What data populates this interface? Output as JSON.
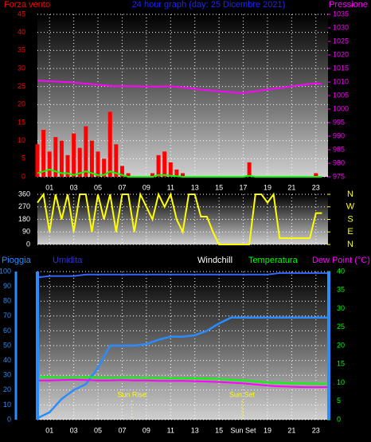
{
  "chart_data": [
    {
      "type": "bar",
      "title": "24 hour graph (day: 25 Dicembre 2021)",
      "title_color": "#2222ff",
      "y_label": "Forza vento",
      "y2_label": "Pressione",
      "x": [
        0,
        0.5,
        1,
        1.5,
        2,
        2.5,
        3,
        3.5,
        4,
        4.5,
        5,
        5.5,
        6,
        6.5,
        7,
        7.5,
        8,
        8.5,
        9,
        9.5,
        10,
        10.5,
        11,
        11.5,
        12,
        12.5,
        13,
        13.5,
        14,
        14.5,
        15,
        15.5,
        16,
        16.5,
        17,
        17.5,
        18,
        18.5,
        19,
        19.5,
        20,
        20.5,
        21,
        21.5,
        22,
        22.5,
        23,
        23.5
      ],
      "xlim": [
        0,
        24
      ],
      "xticks": [
        {
          "value": 1,
          "label": "01"
        },
        {
          "value": 3,
          "label": "03"
        },
        {
          "value": 5,
          "label": "05"
        },
        {
          "value": 7,
          "label": "07"
        },
        {
          "value": 9,
          "label": "09"
        },
        {
          "value": 11,
          "label": "11"
        },
        {
          "value": 13,
          "label": "13"
        },
        {
          "value": 15,
          "label": "15"
        },
        {
          "value": 17,
          "label": "17"
        },
        {
          "value": 19,
          "label": "19"
        },
        {
          "value": 21,
          "label": "21"
        },
        {
          "value": 23,
          "label": "23"
        }
      ],
      "ylim": [
        0,
        45
      ],
      "yticks": [
        0,
        5,
        10,
        15,
        20,
        25,
        30,
        35,
        40,
        45
      ],
      "ytick_color": "#ff0000",
      "y2lim": [
        975,
        1035
      ],
      "y2ticks": [
        975,
        980,
        985,
        990,
        995,
        1000,
        1005,
        1010,
        1015,
        1020,
        1025,
        1030,
        1035
      ],
      "y2tick_color": "#ff00ff",
      "grid": true,
      "series": [
        {
          "name": "Forza vento",
          "color": "#ff0000",
          "values": [
            9,
            13,
            7,
            11,
            10,
            6,
            12,
            8,
            14,
            10,
            7,
            5,
            18,
            9,
            3,
            1,
            0,
            0,
            0,
            1,
            6,
            7,
            4,
            2,
            1,
            0,
            0,
            0,
            0,
            0,
            0,
            0,
            0,
            0,
            0,
            4,
            0,
            0,
            0,
            0,
            0,
            0,
            0,
            0,
            0,
            0,
            1,
            0
          ]
        },
        {
          "type": "line",
          "color": "#00ff00",
          "values": [
            1,
            1.5,
            2,
            1.5,
            1,
            1,
            0.5,
            1,
            1.5,
            1,
            0.5,
            0.5,
            1.5,
            1,
            0.5,
            0,
            0,
            0,
            0,
            0,
            0.5,
            0.5,
            0.3,
            0.2,
            0,
            0,
            0,
            0,
            0,
            0,
            0,
            0,
            0,
            0,
            0,
            0.3,
            0,
            0,
            0,
            0,
            0,
            0,
            0,
            0,
            0,
            0,
            0,
            0
          ]
        },
        {
          "type": "line",
          "name": "Pressione",
          "color": "#ff00ff",
          "axis": "y2",
          "values": [
            1010.5,
            1010.4,
            1010.3,
            1010.2,
            1010.1,
            1010.0,
            1009.8,
            1009.6,
            1009.4,
            1009.2,
            1009.0,
            1008.8,
            1008.6,
            1008.5,
            1008.5,
            1008.5,
            1008.4,
            1008.4,
            1008.3,
            1008.3,
            1008.3,
            1008.4,
            1008.4,
            1008.2,
            1008.0,
            1007.8,
            1007.5,
            1007.2,
            1007.0,
            1006.8,
            1006.6,
            1006.4,
            1006.2,
            1006.0,
            1006.0,
            1006.3,
            1006.6,
            1006.9,
            1007.2,
            1007.5,
            1007.8,
            1008.1,
            1008.4,
            1008.7,
            1009.0,
            1009.3,
            1009.5,
            1009.3
          ]
        }
      ]
    },
    {
      "type": "line",
      "x": [
        0,
        0.5,
        1,
        1.5,
        2,
        2.5,
        3,
        3.5,
        4,
        4.5,
        5,
        5.5,
        6,
        6.5,
        7,
        7.5,
        8,
        8.5,
        9,
        9.5,
        10,
        10.5,
        11,
        11.5,
        12,
        12.5,
        13,
        13.5,
        14,
        14.5,
        15,
        15.5,
        16,
        16.5,
        17,
        17.5,
        18,
        18.5,
        19,
        19.5,
        20,
        20.5,
        21,
        21.5,
        22,
        22.5,
        23,
        23.5
      ],
      "xlim": [
        0,
        24
      ],
      "ylim": [
        0,
        360
      ],
      "yticks": [
        0,
        90,
        180,
        270,
        360
      ],
      "ytick_color": "#ffffff",
      "y2lim": [
        0,
        360
      ],
      "y2ticks": [
        {
          "value": 0,
          "label": "N"
        },
        {
          "value": 90,
          "label": "E"
        },
        {
          "value": 180,
          "label": "S"
        },
        {
          "value": 270,
          "label": "W"
        },
        {
          "value": 360,
          "label": "N"
        }
      ],
      "y2tick_color": "#ffff00",
      "grid": true,
      "series": [
        {
          "color": "#ffff00",
          "values": [
            300,
            360,
            90,
            360,
            180,
            360,
            90,
            360,
            360,
            90,
            360,
            180,
            360,
            90,
            360,
            360,
            90,
            360,
            270,
            180,
            360,
            270,
            360,
            180,
            90,
            360,
            360,
            200,
            200,
            90,
            0,
            0,
            0,
            0,
            0,
            0,
            360,
            360,
            300,
            360,
            45,
            45,
            45,
            45,
            45,
            45,
            225,
            225
          ]
        }
      ]
    },
    {
      "type": "line",
      "x": [
        0,
        1,
        2,
        3,
        4,
        5,
        6,
        7,
        8,
        9,
        10,
        11,
        12,
        13,
        14,
        15,
        16,
        17,
        18,
        19,
        20,
        21,
        22,
        23,
        24
      ],
      "xlim": [
        0,
        24
      ],
      "xticks": [
        {
          "value": 1,
          "label": "01"
        },
        {
          "value": 3,
          "label": "03"
        },
        {
          "value": 5,
          "label": "05"
        },
        {
          "value": 7,
          "label": "07"
        },
        {
          "value": 9,
          "label": "09"
        },
        {
          "value": 11,
          "label": "11"
        },
        {
          "value": 13,
          "label": "13"
        },
        {
          "value": 15,
          "label": "15"
        },
        {
          "value": 17,
          "label": "Sun Set"
        },
        {
          "value": 19,
          "label": "19"
        },
        {
          "value": 21,
          "label": "21"
        },
        {
          "value": 23,
          "label": "23"
        }
      ],
      "ylim": [
        0,
        100
      ],
      "yticks": [
        0,
        10,
        20,
        30,
        40,
        50,
        60,
        70,
        80,
        90,
        100
      ],
      "ytick_color": "#2b8cff",
      "y2lim": [
        0,
        40
      ],
      "y2ticks": [
        0,
        5,
        10,
        15,
        20,
        25,
        30,
        35,
        40
      ],
      "y2tick_color": "#00ff00",
      "grid": true,
      "extra_label": "Windchill",
      "annotations": [
        {
          "text": "Sun Rise",
          "x": 7.8
        },
        {
          "text": "Sun Set",
          "x": 16.9
        }
      ],
      "series": [
        {
          "name": "Pioggia",
          "color": "#2b8cff",
          "values": [
            1,
            5,
            14,
            20,
            24,
            35,
            50,
            50,
            50,
            51,
            54,
            56,
            56,
            57,
            60,
            65,
            69,
            69,
            69,
            69,
            69,
            69,
            69,
            69,
            69
          ]
        },
        {
          "name": "Umidita",
          "color": "#3366ff",
          "label_color": "#3333cc",
          "values": [
            96,
            97,
            97,
            97,
            98,
            98,
            98,
            98,
            98,
            98,
            98,
            98,
            98,
            98,
            98,
            98,
            98,
            98,
            98,
            98,
            99,
            99,
            99,
            99,
            99
          ]
        },
        {
          "name": "Temperatura",
          "color": "#00ff00",
          "axis": "y2",
          "values": [
            11.5,
            11.5,
            11.4,
            11.4,
            11.5,
            11.4,
            11.3,
            11.4,
            11.4,
            11.3,
            11.3,
            11.2,
            11.2,
            11.2,
            11.1,
            11.0,
            10.8,
            10.6,
            10.4,
            10.0,
            10.0,
            9.8,
            9.8,
            9.7,
            9.7
          ]
        },
        {
          "name": "Dew Point (°C)",
          "color": "#ff00ff",
          "axis": "y2",
          "values": [
            10.6,
            10.6,
            10.7,
            10.8,
            10.7,
            10.6,
            10.6,
            10.7,
            10.6,
            10.6,
            10.5,
            10.5,
            10.5,
            10.4,
            10.3,
            10.2,
            10.0,
            9.8,
            9.5,
            9.2,
            9.0,
            8.9,
            8.8,
            8.8,
            8.8
          ]
        }
      ]
    }
  ]
}
